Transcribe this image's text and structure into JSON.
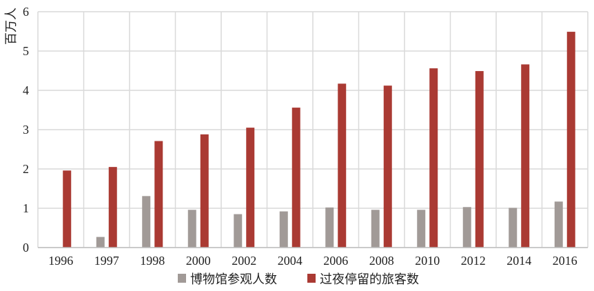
{
  "chart_data": {
    "type": "bar",
    "unit_label": "百万人",
    "categories": [
      "1996",
      "1997",
      "1998",
      "2000",
      "2002",
      "2004",
      "2006",
      "2008",
      "2010",
      "2012",
      "2014",
      "2016"
    ],
    "series": [
      {
        "name": "博物馆参观人数",
        "color": "#a19a97",
        "values": [
          0,
          0.27,
          1.31,
          0.96,
          0.85,
          0.92,
          1.02,
          0.96,
          0.96,
          1.03,
          1.01,
          1.17
        ]
      },
      {
        "name": "过夜停留的旅客数",
        "color": "#aa3a33",
        "values": [
          1.96,
          2.05,
          2.71,
          2.88,
          3.05,
          3.56,
          4.17,
          4.12,
          4.56,
          4.49,
          4.66,
          5.49
        ]
      }
    ],
    "ylim": [
      0,
      6
    ],
    "yticks": [
      0,
      1,
      2,
      3,
      4,
      5,
      6
    ],
    "grid": true,
    "legend_position": "bottom"
  }
}
